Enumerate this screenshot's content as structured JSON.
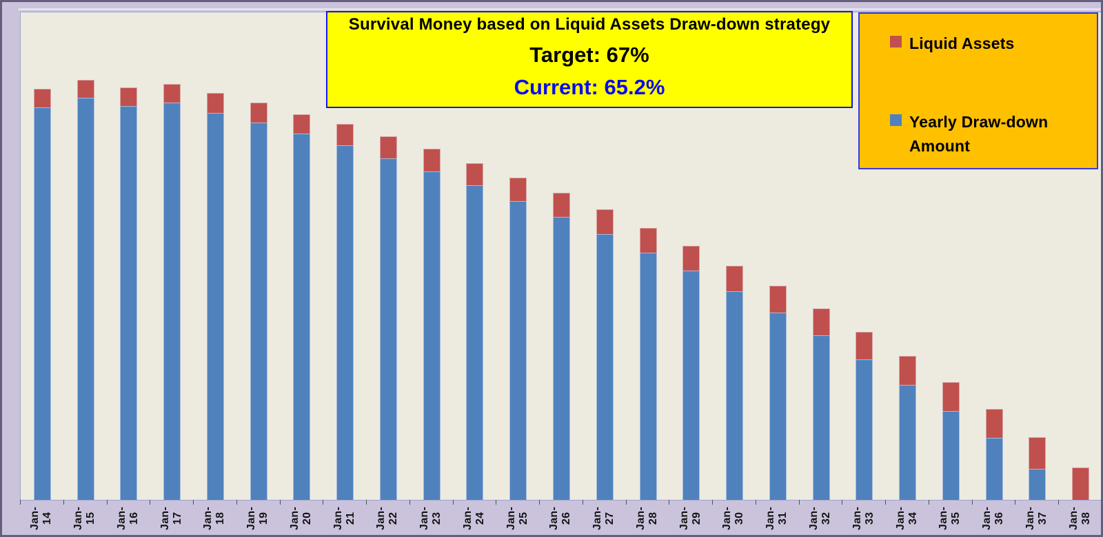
{
  "title_box": {
    "line1": "Survival Money based on Liquid Assets Draw-down strategy",
    "line2": "Target: 67%",
    "line3": "Current: 65.2%"
  },
  "legend": {
    "position": "top-right",
    "background": "#FFC000",
    "border": "#3A3AD8",
    "items": [
      {
        "label": "Liquid Assets",
        "color": "#C0504D"
      },
      {
        "label": "Yearly Draw-down Amount",
        "color": "#4F81BD"
      }
    ]
  },
  "colors": {
    "background": "#CBC3DC",
    "frame_border": "#655D7C",
    "plot_background": "#EDEBE0",
    "plot_border": "#9AA4CB",
    "title_background": "#FFFF00",
    "title_border": "#1515E6",
    "current_text": "#0B0BEF",
    "bar_blue": "#4F81BD",
    "bar_red": "#C0504D"
  },
  "chart_data": {
    "type": "bar",
    "stacked": true,
    "title": "Survival Money based on Liquid Assets Draw-down strategy",
    "xlabel": "",
    "ylabel": "",
    "value_axis_visible": false,
    "grid": false,
    "units": "relative (no value axis shown; 100 = tallest bar total, Jan-15)",
    "ylim": [
      0,
      116
    ],
    "legend_position": "top-right",
    "categories": [
      "Jan-14",
      "Jan-15",
      "Jan-16",
      "Jan-17",
      "Jan-18",
      "Jan-19",
      "Jan-20",
      "Jan-21",
      "Jan-22",
      "Jan-23",
      "Jan-24",
      "Jan-25",
      "Jan-26",
      "Jan-27",
      "Jan-28",
      "Jan-29",
      "Jan-30",
      "Jan-31",
      "Jan-32",
      "Jan-33",
      "Jan-34",
      "Jan-35",
      "Jan-36",
      "Jan-37",
      "Jan-38"
    ],
    "series": [
      {
        "name": "Yearly Draw-down Amount",
        "color": "#4F81BD",
        "values": [
          93.4,
          95.7,
          93.8,
          94.6,
          92.1,
          89.8,
          87.1,
          84.3,
          81.3,
          78.1,
          74.8,
          71.1,
          67.3,
          63.2,
          58.9,
          54.5,
          49.6,
          44.5,
          39.1,
          33.4,
          27.3,
          21.1,
          14.7,
          7.4,
          0
        ]
      },
      {
        "name": "Liquid Assets",
        "color": "#C0504D",
        "values": [
          4.4,
          4.3,
          4.4,
          4.3,
          4.7,
          4.7,
          4.6,
          5.1,
          5.2,
          5.4,
          5.4,
          5.6,
          5.7,
          5.9,
          5.9,
          5.9,
          6.1,
          6.4,
          6.4,
          6.5,
          6.9,
          7.0,
          7.0,
          7.5,
          7.7
        ]
      }
    ]
  }
}
